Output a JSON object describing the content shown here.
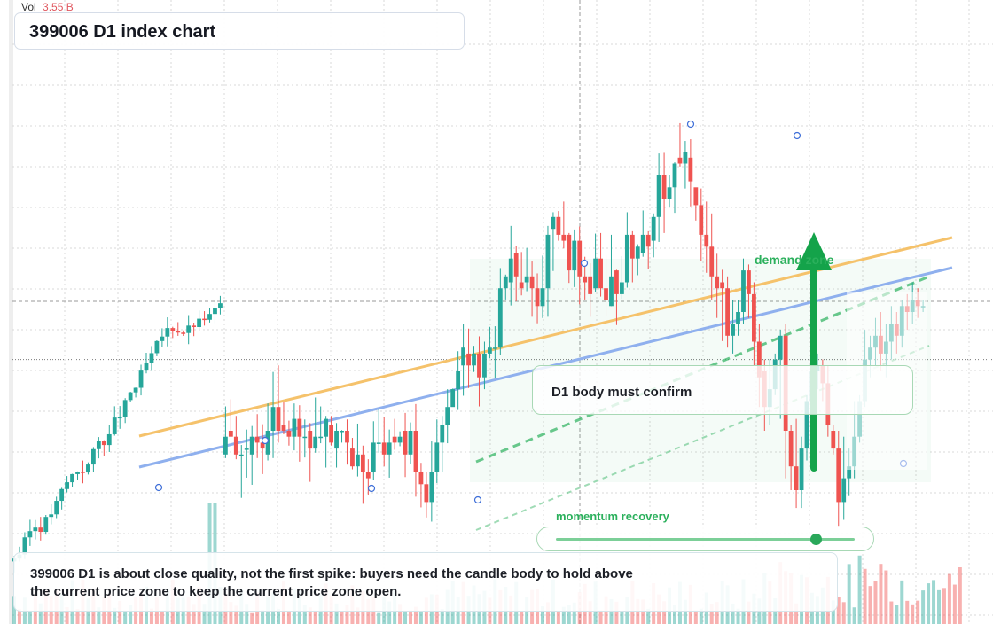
{
  "header": {
    "vol_label": "Vol",
    "vol_value": "3.55 B",
    "title": "399006 D1 index chart"
  },
  "annotations": {
    "confirm_text": "D1 body must confirm",
    "demand_label": "demand zone",
    "momentum_label": "momentum recovery",
    "momentum_level": 0.87,
    "summary": "399006 D1 is about close quality, not the first spike: buyers need the candle body to hold above the current price zone to keep the current price zone open."
  },
  "colors": {
    "up": "#26a69a",
    "down": "#ef5350",
    "resistance_line": "#f5c26b",
    "trend_line": "#8fb0ee",
    "accent_green": "#2bb05c"
  },
  "chart_data": {
    "type": "candlestick",
    "title": "399006 D1 index chart",
    "ylim": [
      0,
      100
    ],
    "price_scale": "unlabeled",
    "grid": true,
    "current_price_level": 42,
    "candles": [
      [
        40,
        26,
        29,
        34.1,
        25.4
      ],
      [
        41,
        30,
        29,
        35.3,
        29.7
      ],
      [
        42,
        29,
        26,
        32.5,
        25.2
      ],
      [
        43,
        26,
        26,
        27.6,
        18.7
      ],
      [
        44,
        27,
        27,
        30.2,
        22.1
      ],
      [
        45,
        26,
        29,
        30.8,
        20.9
      ],
      [
        46,
        29,
        28,
        32.8,
        25.4
      ],
      [
        47,
        28,
        27,
        31.1,
        22.7
      ],
      [
        48,
        26,
        30,
        34.6,
        25
      ],
      [
        49,
        30,
        34,
        39.9,
        25.4
      ],
      [
        50,
        34,
        30,
        41,
        28
      ],
      [
        51,
        31,
        30,
        34.9,
        29.4
      ],
      [
        52,
        30,
        29,
        31.7,
        27.5
      ],
      [
        53,
        29,
        32,
        34.6,
        26.7
      ],
      [
        54,
        32,
        29,
        34.3,
        24.8
      ],
      [
        55,
        29,
        29,
        31.9,
        25.5
      ],
      [
        56,
        30,
        27,
        31.3,
        21.4
      ],
      [
        57,
        27,
        29,
        35.6,
        26.3
      ],
      [
        58,
        29,
        29,
        34.1,
        27.9
      ],
      [
        59,
        29,
        32,
        32.5,
        23.8
      ],
      [
        60,
        31,
        28,
        32.5,
        27.5
      ],
      [
        61,
        27,
        30,
        31.3,
        23.8
      ],
      [
        62,
        30,
        30,
        30.1,
        28
      ],
      [
        63,
        30,
        28,
        31.9,
        24.3
      ],
      [
        64,
        27,
        24,
        28.8,
        23.5
      ],
      [
        65,
        24,
        26,
        31.2,
        22.3
      ],
      [
        66,
        26,
        23,
        27.5,
        17.7
      ],
      [
        67,
        23,
        22,
        25.2,
        19.2
      ],
      [
        68,
        23,
        28,
        31.6,
        21.7
      ],
      [
        69,
        28,
        28,
        33.7,
        26.3
      ],
      [
        70,
        28,
        26,
        32.3,
        24
      ],
      [
        71,
        26,
        28,
        30.2,
        22.1
      ],
      [
        72,
        29,
        28,
        32,
        26.8
      ],
      [
        73,
        28,
        29,
        29.9,
        27.4
      ],
      [
        74,
        30,
        26,
        33,
        22.2
      ],
      [
        75,
        26,
        30,
        31.4,
        24.4
      ],
      [
        76,
        30,
        23,
        34.5,
        18.9
      ],
      [
        77,
        23,
        21,
        24.6,
        17.1
      ],
      [
        78,
        21,
        18,
        23,
        15.4
      ],
      [
        79,
        18,
        23,
        28.2,
        14.7
      ],
      [
        80,
        23,
        28,
        31.9,
        21.2
      ],
      [
        81,
        28,
        31,
        32.5,
        23
      ],
      [
        82,
        31,
        34,
        37,
        27.9
      ],
      [
        83,
        34,
        37,
        37.1,
        36.4
      ],
      [
        84,
        37,
        40,
        43.4,
        33.5
      ],
      [
        85,
        41,
        44,
        48,
        35.9
      ],
      [
        86,
        43,
        41,
        47.2,
        37.2
      ],
      [
        87,
        41,
        43,
        44.3,
        39.9
      ],
      [
        88,
        43,
        39,
        45.9,
        34.1
      ],
      [
        89,
        39,
        43,
        45,
        37
      ],
      [
        90,
        43,
        44,
        47.5,
        42.2
      ],
      [
        91,
        44,
        44,
        47.6,
        38.8
      ],
      [
        92,
        44,
        54,
        57.4,
        42.7
      ],
      [
        93,
        54,
        56,
        56.3,
        52.1
      ],
      [
        94,
        55,
        59,
        64.5,
        51.1
      ],
      [
        95,
        60,
        56,
        61.1,
        51.8
      ],
      [
        96,
        55,
        54,
        60.1,
        52.8
      ],
      [
        97,
        55,
        56,
        60.8,
        53.5
      ],
      [
        98,
        56,
        54,
        58.5,
        49.2
      ],
      [
        99,
        54,
        51,
        56.5,
        48.1
      ],
      [
        100,
        51,
        54,
        59.5,
        49
      ],
      [
        101,
        54,
        63,
        64.5,
        49.2
      ],
      [
        102,
        64,
        66,
        66.8,
        56.9
      ],
      [
        103,
        66,
        63,
        67,
        62
      ],
      [
        104,
        63,
        62,
        68.6,
        60.7
      ],
      [
        105,
        63,
        57,
        63.3,
        54.9
      ],
      [
        106,
        57,
        62,
        63.9,
        54.2
      ],
      [
        107,
        62,
        56,
        64.4,
        51.3
      ],
      [
        108,
        56,
        55,
        59.3,
        52.1
      ],
      [
        109,
        56,
        53,
        58.2,
        49.2
      ],
      [
        110,
        54,
        59,
        63.2,
        53.4
      ],
      [
        111,
        59,
        54,
        63.3,
        52.6
      ],
      [
        112,
        54,
        52,
        59.5,
        49.2
      ],
      [
        113,
        51,
        56,
        63,
        51
      ],
      [
        114,
        57,
        53,
        57.1,
        47.8
      ],
      [
        115,
        53,
        55,
        59.4,
        52.2
      ],
      [
        116,
        55,
        63,
        66.8,
        54.1
      ],
      [
        117,
        63,
        59,
        63.6,
        55
      ],
      [
        118,
        59,
        61,
        61.4,
        56.2
      ],
      [
        119,
        60,
        63,
        67.1,
        59.3
      ],
      [
        120,
        63,
        61,
        63.6,
        57.3
      ],
      [
        121,
        62,
        66,
        66.6,
        59.2
      ],
      [
        122,
        66,
        73,
        76.7,
        61.8
      ],
      [
        123,
        73,
        69,
        76.8,
        63.3
      ],
      [
        124,
        69,
        71,
        73.1,
        67.7
      ],
      [
        125,
        71,
        75,
        75.2,
        66.7
      ],
      [
        126,
        76,
        75,
        81.8,
        74.5
      ],
      [
        127,
        75,
        77,
        78.8,
        70.8
      ],
      [
        128,
        76,
        72,
        79.1,
        67.8
      ],
      [
        129,
        71,
        68,
        70.9,
        65.4
      ],
      [
        130,
        68,
        63,
        70.8,
        58.6
      ],
      [
        131,
        63,
        61,
        68.6,
        56.6
      ],
      [
        132,
        61,
        56,
        66.6,
        52.1
      ],
      [
        133,
        56,
        54,
        59.8,
        49
      ],
      [
        134,
        55,
        54,
        57.1,
        45.1
      ]
    ]
  }
}
